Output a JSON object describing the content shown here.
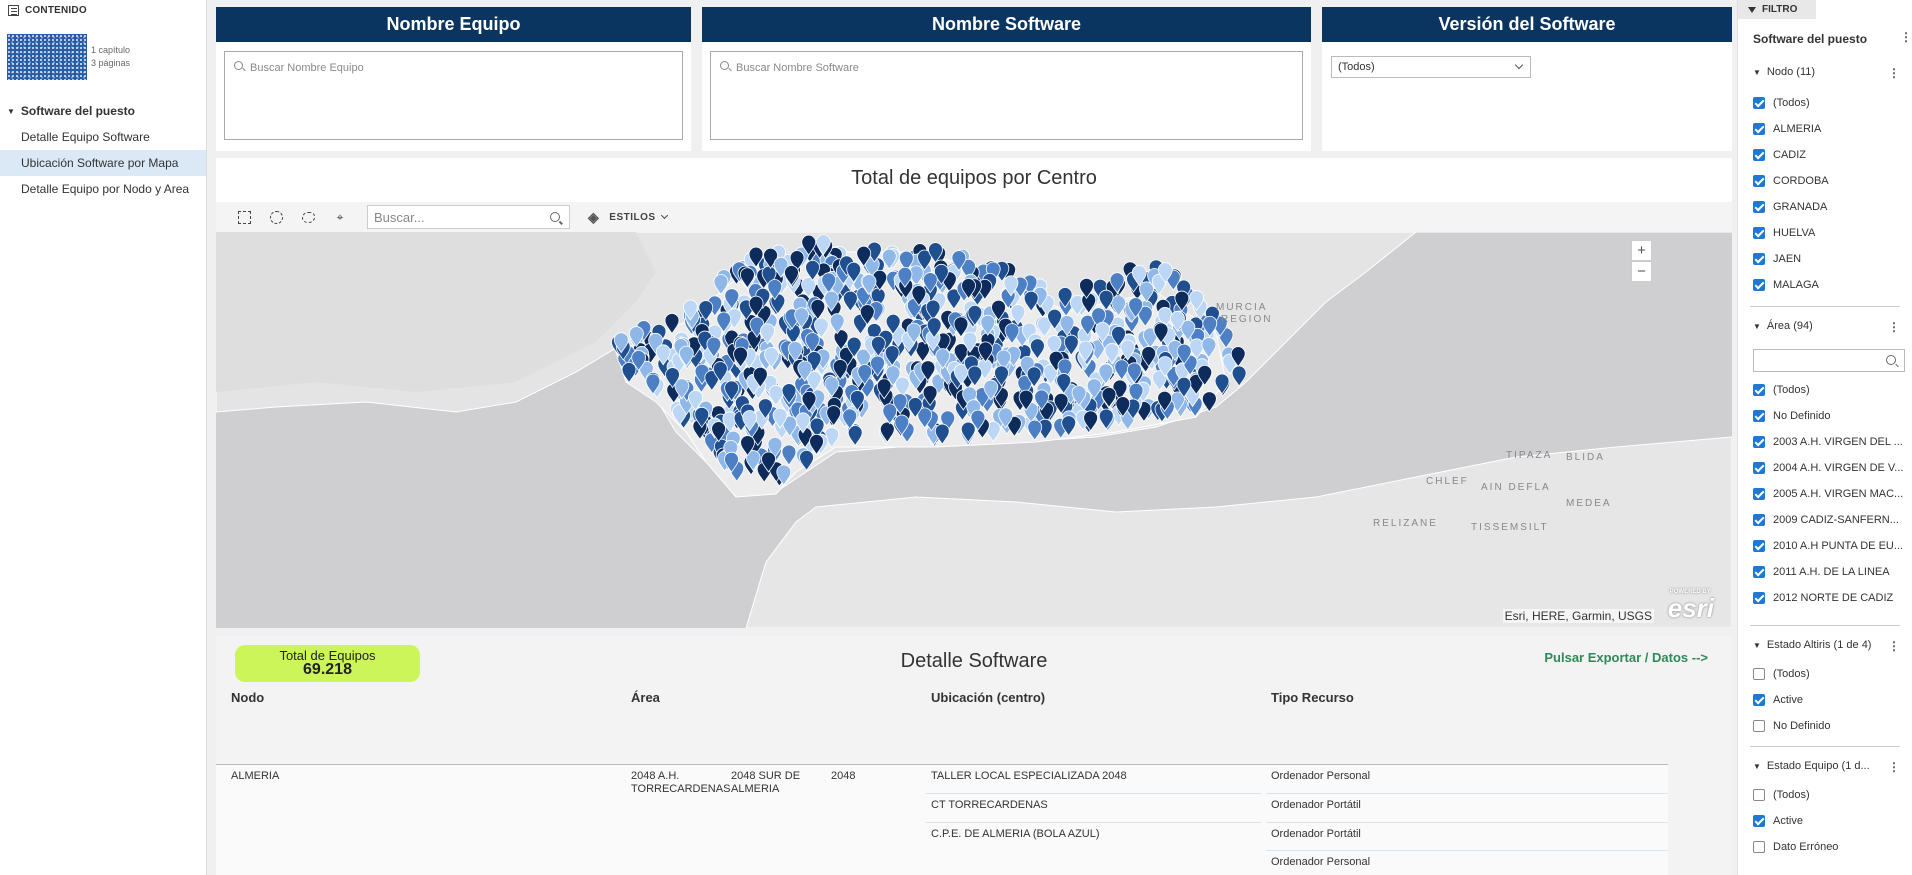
{
  "nav": {
    "header": "CONTENIDO",
    "thumb_meta": [
      "1 capítulo",
      "3 páginas"
    ],
    "group": "Software del puesto",
    "items": [
      {
        "label": "Detalle Equipo Software",
        "active": false
      },
      {
        "label": "Ubicación Software por Mapa",
        "active": true
      },
      {
        "label": "Detalle Equipo por Nodo y Area",
        "active": false
      }
    ]
  },
  "filters": {
    "equipo": {
      "title": "Nombre Equipo",
      "placeholder": "Buscar Nombre Equipo"
    },
    "software": {
      "title": "Nombre Software",
      "placeholder": "Buscar Nombre Software"
    },
    "version": {
      "title": "Versión del Software",
      "selected": "(Todos)"
    }
  },
  "map": {
    "title": "Total de equipos por Centro",
    "search_placeholder": "Buscar...",
    "styles_label": "ESTILOS",
    "zoom_in": "+",
    "zoom_out": "−",
    "attribution": "Esri, HERE, Garmin, USGS",
    "logo": "esri",
    "logo_small": "POWERED BY",
    "labels": {
      "murcia": "MURCIA",
      "region": "REGION",
      "tipaza": "TIPAZA",
      "blida": "BLIDA",
      "chlef": "CHLEF",
      "ain_defla": "AIN DEFLA",
      "medea": "MEDEA",
      "relizane": "RELIZANE",
      "tissemsilt": "TISSEMSILT"
    },
    "pin_colors": [
      "#0d2c5c",
      "#1f4f8f",
      "#4c7fc4",
      "#8fb8e8",
      "#bcd7f5"
    ]
  },
  "table": {
    "total_label": "Total de Equipos",
    "total_value": "69.218",
    "title": "Detalle Software",
    "export": "Pulsar Exportar / Datos -->",
    "columns": [
      "Nodo",
      "Área",
      "Ubicación (centro)",
      "Tipo Recurso"
    ],
    "row": {
      "nodo": "ALMERIA",
      "area_a": "2048 A.H. TORRECARDENAS",
      "area_b": "2048 SUR DE ALMERIA",
      "area_c": "2048",
      "ubicaciones": [
        "TALLER LOCAL ESPECIALIZADA 2048",
        "CT TORRECARDENAS",
        "C.P.E. DE ALMERIA (BOLA AZUL)"
      ],
      "tipos": [
        "Ordenador Personal",
        "Ordenador Portátil",
        "Ordenador Portátil",
        "Ordenador Personal"
      ]
    }
  },
  "rightpanel": {
    "tab": "FILTRO",
    "title": "Software del puesto",
    "nodo": {
      "title": "Nodo (11)",
      "items": [
        {
          "label": "(Todos)",
          "checked": true
        },
        {
          "label": "ALMERIA",
          "checked": true
        },
        {
          "label": "CADIZ",
          "checked": true
        },
        {
          "label": "CORDOBA",
          "checked": true
        },
        {
          "label": "GRANADA",
          "checked": true
        },
        {
          "label": "HUELVA",
          "checked": true
        },
        {
          "label": "JAEN",
          "checked": true
        },
        {
          "label": "MALAGA",
          "checked": true
        }
      ]
    },
    "area": {
      "title": "Área (94)",
      "items": [
        {
          "label": "(Todos)",
          "checked": true
        },
        {
          "label": "No Definido",
          "checked": true
        },
        {
          "label": "2003 A.H. VIRGEN DEL ...",
          "checked": true
        },
        {
          "label": "2004 A.H. VIRGEN DE V...",
          "checked": true
        },
        {
          "label": "2005 A.H. VIRGEN MAC...",
          "checked": true
        },
        {
          "label": "2009 CADIZ-SANFERN...",
          "checked": true
        },
        {
          "label": "2010 A.H PUNTA DE EU...",
          "checked": true
        },
        {
          "label": "2011 A.H. DE LA LINEA",
          "checked": true
        },
        {
          "label": "2012 NORTE DE CADIZ",
          "checked": true
        }
      ]
    },
    "estado_altiris": {
      "title": "Estado Altiris (1 de 4)",
      "items": [
        {
          "label": "(Todos)",
          "checked": false
        },
        {
          "label": "Active",
          "checked": true
        },
        {
          "label": "No Definido",
          "checked": false
        }
      ]
    },
    "estado_equipo": {
      "title": "Estado Equipo (1 d...",
      "items": [
        {
          "label": "(Todos)",
          "checked": false
        },
        {
          "label": "Active",
          "checked": true
        },
        {
          "label": "Dato Erróneo",
          "checked": false
        }
      ]
    }
  }
}
